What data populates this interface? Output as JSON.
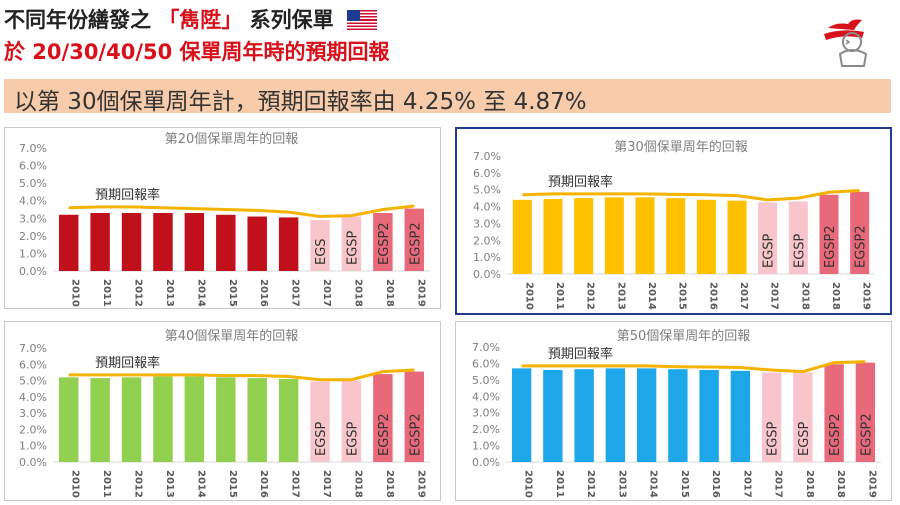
{
  "header": {
    "title_prefix": "不同年份繕發之",
    "title_brand": "「雋陞」",
    "title_suffix": "系列保單",
    "subtitle": "於 20/30/40/50 保單周年時的預期回報",
    "banner": "以第 30個保單周年計，預期回報率由 4.25% 至 4.87%",
    "flag_icon": "us-flag-icon",
    "logo_icon": "allianz-eagle-logo"
  },
  "colors": {
    "title_red": "#d8101a",
    "banner_bg": "#f8ccaa",
    "line": "#f5b301",
    "egsp_light": "#f8c5cc",
    "egsp2": "#e8697a",
    "highlight_border": "#233b8c"
  },
  "chart_data": [
    {
      "type": "bar",
      "title": "第20個保單周年的回報",
      "categories": [
        "2010",
        "2011",
        "2012",
        "2013",
        "2014",
        "2015",
        "2016",
        "2017",
        "2017",
        "2018",
        "2018",
        "2019"
      ],
      "bar_labels": [
        "",
        "",
        "",
        "",
        "",
        "",
        "",
        "",
        "EGS",
        "EGSP",
        "EGSP2",
        "EGSP2"
      ],
      "values": [
        3.2,
        3.3,
        3.3,
        3.3,
        3.3,
        3.2,
        3.1,
        3.05,
        2.9,
        3.1,
        3.3,
        3.55
      ],
      "bar_colors": [
        "#c0101c",
        "#c0101c",
        "#c0101c",
        "#c0101c",
        "#c0101c",
        "#c0101c",
        "#c0101c",
        "#c0101c",
        "#f8c5cc",
        "#f8c5cc",
        "#e8697a",
        "#e8697a"
      ],
      "line": {
        "name": "預期回報率",
        "values": [
          3.6,
          3.65,
          3.65,
          3.6,
          3.55,
          3.5,
          3.45,
          3.35,
          3.1,
          3.15,
          3.5,
          3.7
        ],
        "color": "#f5b301"
      },
      "ylim": [
        0,
        7
      ],
      "yticks": [
        "0.0%",
        "1.0%",
        "2.0%",
        "3.0%",
        "4.0%",
        "5.0%",
        "6.0%",
        "7.0%"
      ],
      "grid": false
    },
    {
      "type": "bar",
      "title": "第30個保單周年的回報",
      "categories": [
        "2010",
        "2011",
        "2012",
        "2013",
        "2014",
        "2015",
        "2016",
        "2017",
        "2017",
        "2018",
        "2018",
        "2019"
      ],
      "bar_labels": [
        "",
        "",
        "",
        "",
        "",
        "",
        "",
        "",
        "EGSP",
        "EGSP",
        "EGSP2",
        "EGSP2"
      ],
      "values": [
        4.4,
        4.45,
        4.5,
        4.55,
        4.55,
        4.5,
        4.4,
        4.35,
        4.25,
        4.3,
        4.7,
        4.87
      ],
      "bar_colors": [
        "#ffc000",
        "#ffc000",
        "#ffc000",
        "#ffc000",
        "#ffc000",
        "#ffc000",
        "#ffc000",
        "#ffc000",
        "#f8c5cc",
        "#f8c5cc",
        "#e8697a",
        "#e8697a"
      ],
      "line": {
        "name": "預期回報率",
        "values": [
          4.7,
          4.75,
          4.75,
          4.75,
          4.75,
          4.72,
          4.7,
          4.65,
          4.4,
          4.5,
          4.85,
          4.95
        ],
        "color": "#f5b301"
      },
      "ylim": [
        0,
        7
      ],
      "yticks": [
        "0.0%",
        "1.0%",
        "2.0%",
        "3.0%",
        "4.0%",
        "5.0%",
        "6.0%",
        "7.0%"
      ],
      "grid": false
    },
    {
      "type": "bar",
      "title": "第40個保單周年的回報",
      "categories": [
        "2010",
        "2011",
        "2012",
        "2013",
        "2014",
        "2015",
        "2016",
        "2017",
        "2017",
        "2018",
        "2018",
        "2019"
      ],
      "bar_labels": [
        "",
        "",
        "",
        "",
        "",
        "",
        "",
        "",
        "EGSP",
        "EGSP",
        "EGSP2",
        "EGSP2"
      ],
      "values": [
        5.2,
        5.15,
        5.2,
        5.25,
        5.25,
        5.2,
        5.15,
        5.1,
        4.95,
        5.0,
        5.4,
        5.55
      ],
      "bar_colors": [
        "#92d050",
        "#92d050",
        "#92d050",
        "#92d050",
        "#92d050",
        "#92d050",
        "#92d050",
        "#92d050",
        "#f8c5cc",
        "#f8c5cc",
        "#e8697a",
        "#e8697a"
      ],
      "line": {
        "name": "預期回報率",
        "values": [
          5.35,
          5.35,
          5.35,
          5.35,
          5.35,
          5.3,
          5.3,
          5.25,
          5.05,
          5.05,
          5.55,
          5.65
        ],
        "color": "#f5b301"
      },
      "ylim": [
        0,
        7
      ],
      "yticks": [
        "0.0%",
        "1.0%",
        "2.0%",
        "3.0%",
        "4.0%",
        "5.0%",
        "6.0%",
        "7.0%"
      ],
      "grid": false
    },
    {
      "type": "bar",
      "title": "第50個保單周年的回報",
      "categories": [
        "2010",
        "2011",
        "2012",
        "2013",
        "2014",
        "2015",
        "2016",
        "2017",
        "2017",
        "2018",
        "2018",
        "2019"
      ],
      "bar_labels": [
        "",
        "",
        "",
        "",
        "",
        "",
        "",
        "",
        "EGSP",
        "EGSP",
        "EGSP2",
        "EGSP2"
      ],
      "values": [
        5.7,
        5.6,
        5.65,
        5.7,
        5.7,
        5.65,
        5.6,
        5.55,
        5.45,
        5.45,
        5.95,
        6.05
      ],
      "bar_colors": [
        "#1ea7e8",
        "#1ea7e8",
        "#1ea7e8",
        "#1ea7e8",
        "#1ea7e8",
        "#1ea7e8",
        "#1ea7e8",
        "#1ea7e8",
        "#f8c5cc",
        "#f8c5cc",
        "#e8697a",
        "#e8697a"
      ],
      "line": {
        "name": "預期回報率",
        "values": [
          5.85,
          5.85,
          5.85,
          5.85,
          5.85,
          5.8,
          5.78,
          5.75,
          5.6,
          5.5,
          6.05,
          6.1
        ],
        "color": "#f5b301"
      },
      "ylim": [
        0,
        7
      ],
      "yticks": [
        "0.0%",
        "1.0%",
        "2.0%",
        "3.0%",
        "4.0%",
        "5.0%",
        "6.0%",
        "7.0%"
      ],
      "grid": false
    }
  ]
}
